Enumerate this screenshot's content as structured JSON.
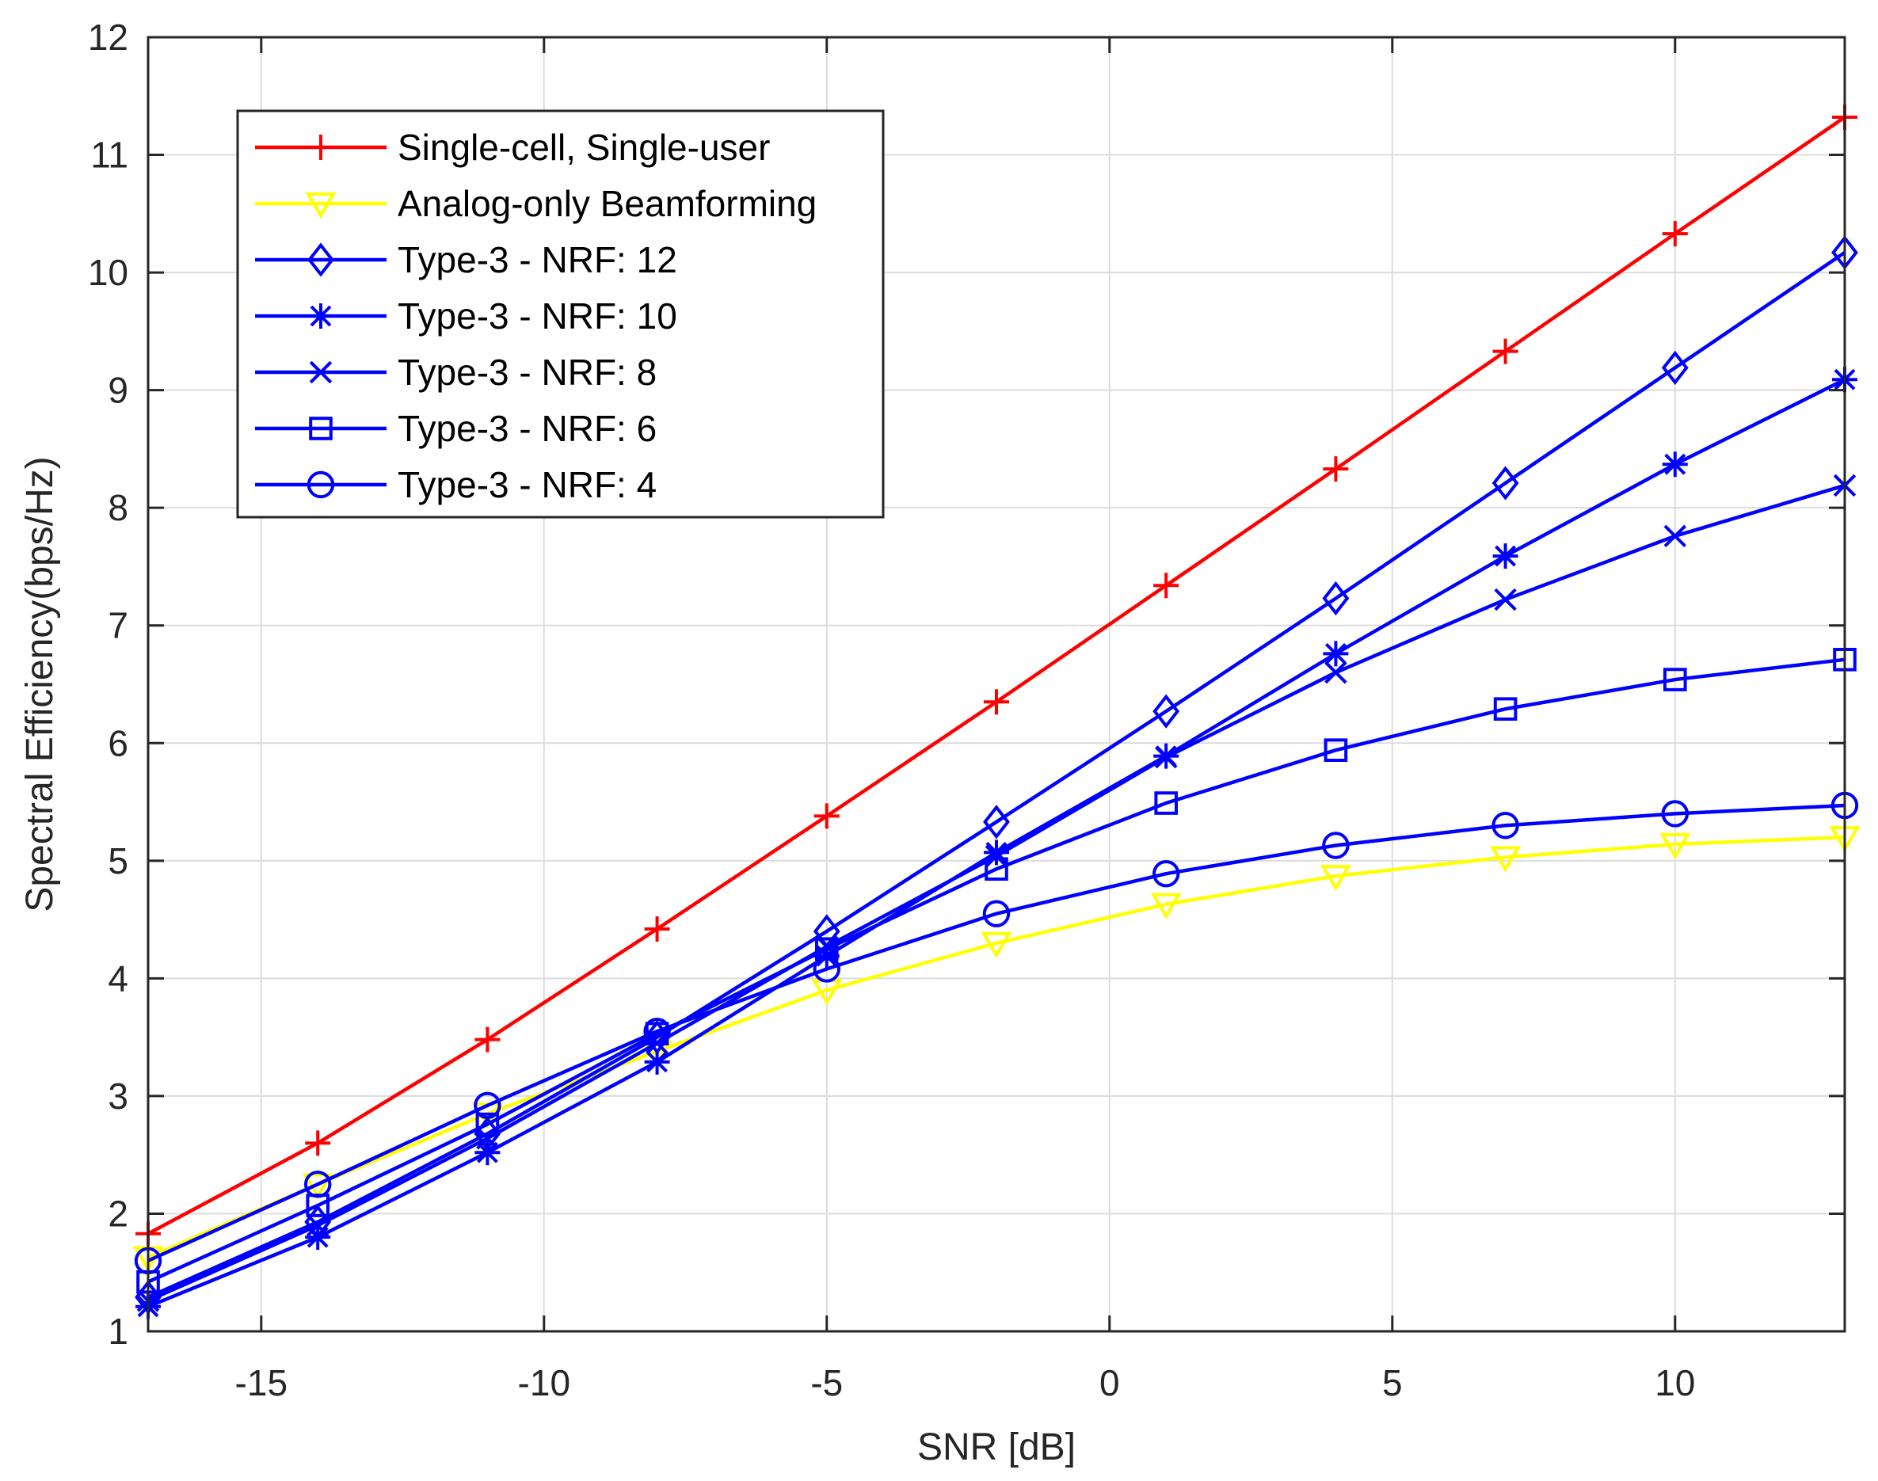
{
  "chart_data": {
    "type": "line",
    "title": "",
    "xlabel": "SNR [dB]",
    "ylabel": "Spectral Efficiency(bps/Hz)",
    "xlim": [
      -17,
      13
    ],
    "ylim": [
      1,
      12
    ],
    "xticks": [
      -15,
      -10,
      -5,
      0,
      5,
      10
    ],
    "yticks": [
      1,
      2,
      3,
      4,
      5,
      6,
      7,
      8,
      9,
      10,
      11,
      12
    ],
    "grid": true,
    "legend_position": "top-left",
    "x": [
      -17,
      -14,
      -11,
      -8,
      -5,
      -2,
      1,
      4,
      7,
      10,
      13
    ],
    "series": [
      {
        "name": "Single-cell, Single-user",
        "color": "#ff0000",
        "marker": "plus",
        "values": [
          1.83,
          2.6,
          3.48,
          4.42,
          5.38,
          6.35,
          7.34,
          8.33,
          9.33,
          10.33,
          11.32
        ]
      },
      {
        "name": "Analog-only Beamforming",
        "color": "#ffff00",
        "marker": "triangle-down",
        "values": [
          1.63,
          2.25,
          2.85,
          3.38,
          3.9,
          4.3,
          4.63,
          4.87,
          5.03,
          5.14,
          5.2
        ]
      },
      {
        "name": "Type-3 - NRF: 12",
        "color": "#0000ff",
        "marker": "diamond",
        "values": [
          1.29,
          1.93,
          2.68,
          3.5,
          4.4,
          5.33,
          6.27,
          7.23,
          8.21,
          9.19,
          10.17
        ]
      },
      {
        "name": "Type-3 - NRF: 10",
        "color": "#0000ff",
        "marker": "asterisk",
        "values": [
          1.21,
          1.8,
          2.52,
          3.29,
          4.19,
          5.07,
          5.89,
          6.76,
          7.59,
          8.37,
          9.09
        ]
      },
      {
        "name": "Type-3 - NRF: 8",
        "color": "#0000ff",
        "marker": "x",
        "values": [
          1.26,
          1.9,
          2.64,
          3.45,
          4.27,
          5.04,
          5.88,
          6.6,
          7.22,
          7.76,
          8.19
        ]
      },
      {
        "name": "Type-3 - NRF: 6",
        "color": "#0000ff",
        "marker": "square",
        "values": [
          1.42,
          2.07,
          2.76,
          3.53,
          4.25,
          4.93,
          5.49,
          5.94,
          6.29,
          6.54,
          6.71
        ]
      },
      {
        "name": "Type-3 - NRF: 4",
        "color": "#0000ff",
        "marker": "circle",
        "values": [
          1.6,
          2.25,
          2.92,
          3.55,
          4.08,
          4.55,
          4.89,
          5.13,
          5.3,
          5.4,
          5.47
        ]
      }
    ]
  }
}
